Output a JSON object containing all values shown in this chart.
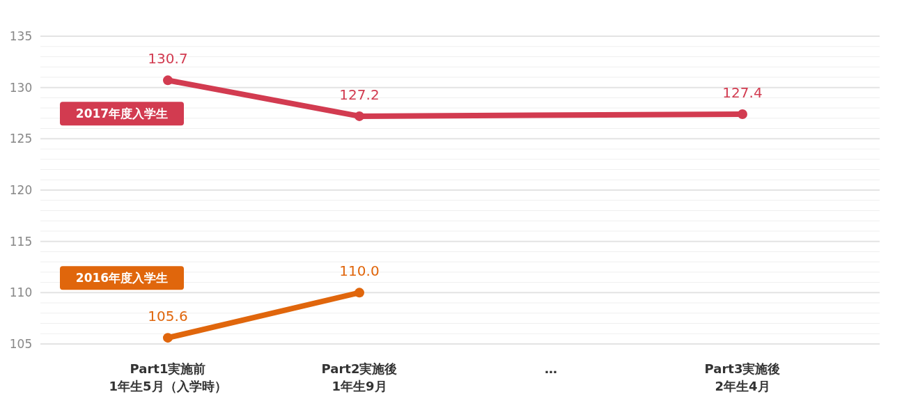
{
  "chart_data": {
    "type": "line",
    "categories": [
      "Part1実施前\n1年生5月（入学時）",
      "Part2実施後\n1年生9月",
      "…",
      "Part3実施後\n2年生4月"
    ],
    "series": [
      {
        "name": "2017年度入学生",
        "color": "#d23b50",
        "values": [
          130.7,
          127.2,
          null,
          127.4
        ],
        "value_labels": [
          "130.7",
          "127.2",
          null,
          "127.4"
        ]
      },
      {
        "name": "2016年度入学生",
        "color": "#e0660c",
        "values": [
          105.6,
          110.0,
          null,
          null
        ],
        "value_labels": [
          "105.6",
          "110.0",
          null,
          null
        ]
      }
    ],
    "ylim": [
      105,
      135
    ],
    "yticks": [
      105,
      {
        "value": 106,
        "label": null
      },
      {
        "value": 107,
        "label": null
      },
      {
        "value": 108,
        "label": null
      },
      {
        "value": 109,
        "label": null
      },
      110,
      {
        "value": 111,
        "label": null
      },
      {
        "value": 112,
        "label": null
      },
      {
        "value": 113,
        "label": null
      },
      {
        "value": 114,
        "label": null
      },
      115,
      {
        "value": 116,
        "label": null
      },
      {
        "value": 117,
        "label": null
      },
      {
        "value": 118,
        "label": null
      },
      {
        "value": 119,
        "label": null
      },
      120,
      {
        "value": 121,
        "label": null
      },
      {
        "value": 122,
        "label": null
      },
      {
        "value": 123,
        "label": null
      },
      {
        "value": 124,
        "label": null
      },
      125,
      {
        "value": 126,
        "label": null
      },
      {
        "value": 127,
        "label": null
      },
      {
        "value": 128,
        "label": null
      },
      {
        "value": 129,
        "label": null
      },
      130,
      {
        "value": 131,
        "label": null
      },
      {
        "value": 132,
        "label": null
      },
      {
        "value": 133,
        "label": null
      },
      {
        "value": 134,
        "label": null
      },
      135
    ],
    "grid": "y",
    "marker": "circle",
    "line_style": "solid"
  }
}
